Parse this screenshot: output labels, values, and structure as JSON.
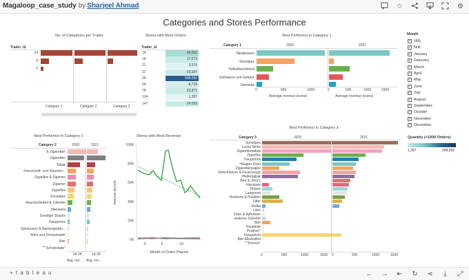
{
  "workbook": {
    "title": "Magaloop_case_study",
    "by": "by",
    "author": "Sharjeel Ahmad"
  },
  "dashboard": {
    "title": "Categories and Stores Performance"
  },
  "colors": {
    "brown": "#a64537",
    "teal": "#7ac7c4",
    "navy": "#2a5d8f"
  },
  "icons": [
    "comment-icon",
    "star-icon",
    "share-icon",
    "download-icon",
    "fullscreen-icon",
    "settings-icon"
  ],
  "panel1": {
    "title": "No. of Categories per Trader",
    "row_header": "Trader_Id",
    "rows": [
      "14",
      "4",
      "5"
    ],
    "columns": [
      "Category 1",
      "Category 2",
      "Category 3"
    ]
  },
  "panel2": {
    "title": "Stores with Most Orders",
    "row_header": "Trader_Id",
    "rows": [
      {
        "id": "14",
        "value": "49,030"
      },
      {
        "id": "18",
        "value": "17,073"
      },
      {
        "id": "21",
        "value": "3,576"
      },
      {
        "id": "22",
        "value": "23,337"
      },
      {
        "id": "26",
        "value": "308,092"
      },
      {
        "id": "54",
        "value": "8,729"
      },
      {
        "id": "78",
        "value": "23,971"
      },
      {
        "id": "134",
        "value": "1,287"
      },
      {
        "id": "147",
        "value": "24,093"
      }
    ]
  },
  "panel3": {
    "title": "Best Performor in Category 1",
    "row_header": "Category 1",
    "years": [
      "2020",
      "2021"
    ],
    "categories": [
      "Tabakwaren",
      "Sonstiges",
      "Tiefkühlsortiment",
      "Süßwaren und Gebäck",
      "Getränke"
    ],
    "axis_title": "Average revenue (euros)",
    "ticks_2020": [
      "0",
      "500",
      "1000"
    ],
    "ticks_2021": [
      "0",
      "500",
      "1000",
      "1500"
    ]
  },
  "panel4": {
    "title": "Best Performor in Category 2",
    "row_header": "Category 2",
    "years": [
      "2020",
      "2021"
    ],
    "categories": [
      "E-Zigaretten",
      "Zigaretten",
      "Tabak",
      "Feinschnitt- und Volumen...",
      "Zigarillos & Zigarren",
      "Zigarren",
      "Zigarillos",
      "Sonstiges",
      "Raucherbedarf & Zubehör",
      "Sbeiseeis",
      "Sonstige Snacks",
      "Kaugummi",
      "Spirituosen & Barmixgeträn...",
      "Wein und Schaumwein",
      "Bier",
      "\"\"\"Schokolade\""
    ],
    "axis_title": "Avg. rev...",
    "ticks": [
      "1K",
      "2K"
    ]
  },
  "panel5": {
    "title": "Stores with Most Revenue",
    "ylabel": "revenue (euros)",
    "xlabel": "Month of Order Placed",
    "yticks": [
      "100K",
      "80K",
      "60K",
      "40K",
      "20K",
      "0K"
    ],
    "xticks": [
      "0",
      "5",
      "10"
    ]
  },
  "panel6": {
    "title": "Best Performor in Category 3",
    "row_header": "Category 3",
    "years": [
      "2020",
      "2021"
    ],
    "categories": [
      "Sonstiges",
      "Lucky Strike",
      "Zigarettentabak",
      "Zigarillos",
      "Kaugummi",
      "Häagen-Dazs",
      "Zigarettenpapier",
      "Streichhölzer & Feuerzeuge",
      "Pfeifentabak",
      "Ben & Jerry's",
      "Impulseis",
      "Hülsen",
      "Langnese",
      "Bonbons & Pastillen",
      "Filter",
      "Vodka",
      "Likör",
      "Cider & Apfelwein",
      "weiteres Zubehör",
      "Bier",
      "Kautabak",
      "Pralinen\"",
      "Kaugummi",
      "Bier Alkoholfrei",
      "\"\"\"Ferrero\""
    ],
    "ticks_2020": [
      "0",
      "500",
      "1000",
      "1500"
    ],
    "ticks_2021": [
      "0",
      "500",
      "1000",
      "1500"
    ]
  },
  "month_filter": {
    "title": "Month",
    "items": [
      "(All)",
      "Null",
      "January",
      "February",
      "March",
      "April",
      "May",
      "June",
      "July",
      "August",
      "September",
      "October",
      "November",
      "December"
    ]
  },
  "quantity_legend": {
    "title": "Quantity (>1000 Orders)",
    "min": "1,287",
    "max": "308,092"
  },
  "footer": {
    "logo": "+ t a b l e a u"
  }
}
